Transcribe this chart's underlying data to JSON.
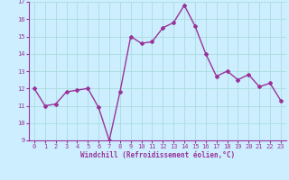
{
  "x": [
    0,
    1,
    2,
    3,
    4,
    5,
    6,
    7,
    8,
    9,
    10,
    11,
    12,
    13,
    14,
    15,
    16,
    17,
    18,
    19,
    20,
    21,
    22,
    23
  ],
  "y": [
    12.0,
    11.0,
    11.1,
    11.8,
    11.9,
    12.0,
    10.9,
    9.0,
    11.8,
    15.0,
    14.6,
    14.7,
    15.5,
    15.8,
    16.8,
    15.6,
    14.0,
    12.7,
    13.0,
    12.5,
    12.8,
    12.1,
    12.3,
    11.3
  ],
  "line_color": "#993399",
  "marker": "D",
  "marker_size": 2.0,
  "line_width": 1.0,
  "bg_color": "#cceeff",
  "grid_color": "#aadddd",
  "xlabel": "Windchill (Refroidissement éolien,°C)",
  "xlabel_color": "#993399",
  "tick_color": "#993399",
  "label_fontsize": 5.0,
  "xlabel_fontsize": 5.5,
  "ylim": [
    9,
    17
  ],
  "xlim_min": -0.5,
  "xlim_max": 23.5,
  "yticks": [
    9,
    10,
    11,
    12,
    13,
    14,
    15,
    16,
    17
  ],
  "xticks": [
    0,
    1,
    2,
    3,
    4,
    5,
    6,
    7,
    8,
    9,
    10,
    11,
    12,
    13,
    14,
    15,
    16,
    17,
    18,
    19,
    20,
    21,
    22,
    23
  ]
}
